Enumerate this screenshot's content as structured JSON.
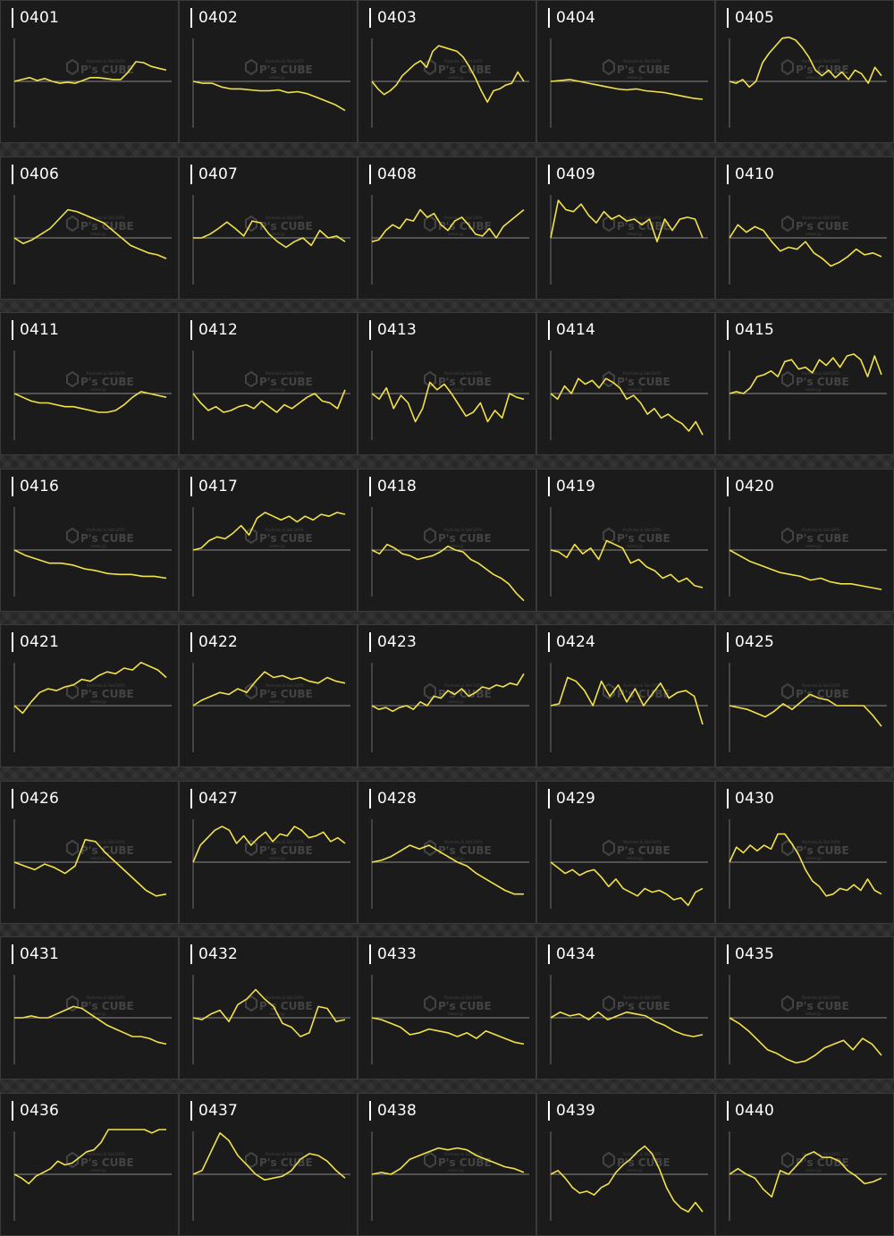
{
  "colors": {
    "line": "#f3e24a",
    "baseline": "#8a8a8a",
    "axis": "#6e6e6e",
    "panel_bg": "#1b1b1b",
    "label": "#ffffff"
  },
  "watermark": {
    "brand": "P's CUBE",
    "top": "Pachinko & Slot DATA",
    "bottom": "sekoai.jp"
  },
  "chart_data": [
    {
      "type": "line",
      "title": "0401",
      "series": [
        {
          "values": [
            0,
            2,
            4,
            1,
            3,
            0,
            -2,
            -1,
            -2,
            1,
            4,
            4,
            3,
            2,
            2,
            10,
            21,
            20,
            16,
            14,
            12
          ]
        }
      ]
    },
    {
      "type": "line",
      "title": "0402",
      "series": [
        {
          "values": [
            0,
            -2,
            -2,
            -6,
            -8,
            -8,
            -9,
            -10,
            -10,
            -9,
            -12,
            -11,
            -13,
            -17,
            -21,
            -25,
            -31
          ]
        }
      ]
    },
    {
      "type": "line",
      "title": "0403",
      "series": [
        {
          "values": [
            0,
            -8,
            -14,
            -10,
            -4,
            6,
            12,
            18,
            22,
            15,
            32,
            38,
            36,
            34,
            32,
            26,
            16,
            4,
            -10,
            -22,
            -10,
            -8,
            -4,
            -2,
            10,
            0
          ]
        }
      ]
    },
    {
      "type": "line",
      "title": "0404",
      "series": [
        {
          "values": [
            0,
            1,
            2,
            0,
            -2,
            -4,
            -6,
            -8,
            -9,
            -8,
            -10,
            -11,
            -12,
            -14,
            -16,
            -18,
            -19
          ]
        }
      ]
    },
    {
      "type": "line",
      "title": "0405",
      "series": [
        {
          "values": [
            0,
            -2,
            2,
            -6,
            0,
            20,
            30,
            38,
            46,
            47,
            44,
            36,
            26,
            12,
            6,
            12,
            4,
            10,
            2,
            12,
            8,
            -2,
            15,
            6
          ]
        }
      ]
    },
    {
      "type": "line",
      "title": "0406",
      "series": [
        {
          "values": [
            0,
            -6,
            -2,
            4,
            10,
            20,
            30,
            28,
            24,
            20,
            16,
            8,
            0,
            -8,
            -12,
            -16,
            -18,
            -22
          ]
        }
      ]
    },
    {
      "type": "line",
      "title": "0407",
      "series": [
        {
          "values": [
            0,
            0,
            4,
            10,
            17,
            10,
            2,
            18,
            16,
            4,
            -4,
            -10,
            -4,
            0,
            -8,
            8,
            0,
            2,
            -4
          ]
        }
      ]
    },
    {
      "type": "line",
      "title": "0408",
      "series": [
        {
          "values": [
            -4,
            -2,
            8,
            14,
            10,
            20,
            18,
            30,
            22,
            26,
            14,
            8,
            18,
            22,
            14,
            4,
            2,
            10,
            0,
            12,
            18,
            24,
            30
          ]
        }
      ]
    },
    {
      "type": "line",
      "title": "0409",
      "series": [
        {
          "values": [
            0,
            40,
            30,
            28,
            36,
            24,
            16,
            28,
            20,
            24,
            18,
            20,
            14,
            20,
            -4,
            20,
            8,
            20,
            22,
            20,
            0
          ]
        }
      ]
    },
    {
      "type": "line",
      "title": "0410",
      "series": [
        {
          "values": [
            0,
            14,
            6,
            12,
            8,
            -4,
            -14,
            -10,
            -12,
            -4,
            -16,
            -22,
            -30,
            -26,
            -20,
            -12,
            -18,
            -16,
            -20
          ]
        }
      ]
    },
    {
      "type": "line",
      "title": "0411",
      "series": [
        {
          "values": [
            0,
            -4,
            -8,
            -10,
            -10,
            -12,
            -14,
            -14,
            -16,
            -18,
            -20,
            -20,
            -18,
            -12,
            -4,
            2,
            0,
            -2,
            -4
          ]
        }
      ]
    },
    {
      "type": "line",
      "title": "0412",
      "series": [
        {
          "values": [
            0,
            -10,
            -18,
            -14,
            -20,
            -18,
            -14,
            -12,
            -16,
            -8,
            -14,
            -20,
            -12,
            -16,
            -10,
            -4,
            0,
            -8,
            -10,
            -16,
            4
          ]
        }
      ]
    },
    {
      "type": "line",
      "title": "0413",
      "series": [
        {
          "values": [
            0,
            -6,
            6,
            -16,
            -2,
            -10,
            -30,
            -16,
            12,
            4,
            10,
            0,
            -12,
            -24,
            -20,
            -10,
            -30,
            -18,
            -26,
            0,
            -4,
            -6
          ]
        }
      ]
    },
    {
      "type": "line",
      "title": "0414",
      "series": [
        {
          "values": [
            0,
            -6,
            8,
            0,
            16,
            10,
            14,
            6,
            16,
            12,
            6,
            -6,
            -2,
            -10,
            -22,
            -16,
            -26,
            -22,
            -28,
            -32,
            -40,
            -30,
            -44
          ]
        }
      ]
    },
    {
      "type": "line",
      "title": "0415",
      "series": [
        {
          "values": [
            0,
            2,
            0,
            6,
            18,
            20,
            24,
            18,
            34,
            36,
            26,
            28,
            22,
            36,
            30,
            38,
            28,
            40,
            42,
            36,
            18,
            40,
            20
          ]
        }
      ]
    },
    {
      "type": "line",
      "title": "0416",
      "series": [
        {
          "values": [
            0,
            -6,
            -10,
            -14,
            -14,
            -16,
            -20,
            -22,
            -25,
            -26,
            -26,
            -28,
            -28,
            -30
          ]
        }
      ]
    },
    {
      "type": "line",
      "title": "0417",
      "series": [
        {
          "values": [
            0,
            2,
            10,
            14,
            12,
            18,
            26,
            16,
            34,
            40,
            36,
            32,
            36,
            30,
            36,
            32,
            38,
            36,
            40,
            38
          ]
        }
      ]
    },
    {
      "type": "line",
      "title": "0418",
      "series": [
        {
          "values": [
            0,
            -4,
            6,
            2,
            -4,
            -6,
            -10,
            -8,
            -6,
            -2,
            4,
            0,
            -2,
            -10,
            -14,
            -20,
            -26,
            -30,
            -36,
            -46,
            -54
          ]
        }
      ]
    },
    {
      "type": "line",
      "title": "0419",
      "series": [
        {
          "values": [
            0,
            -2,
            -8,
            6,
            -4,
            2,
            -10,
            10,
            6,
            2,
            -14,
            -10,
            -18,
            -22,
            -30,
            -26,
            -34,
            -30,
            -38,
            -40
          ]
        }
      ]
    },
    {
      "type": "line",
      "title": "0420",
      "series": [
        {
          "values": [
            0,
            -6,
            -12,
            -16,
            -20,
            -24,
            -26,
            -28,
            -32,
            -30,
            -34,
            -36,
            -36,
            -38,
            -40,
            -42
          ]
        }
      ]
    },
    {
      "type": "line",
      "title": "0421",
      "series": [
        {
          "values": [
            0,
            -8,
            4,
            14,
            18,
            16,
            20,
            22,
            28,
            26,
            32,
            36,
            34,
            40,
            38,
            46,
            42,
            38,
            30
          ]
        }
      ]
    },
    {
      "type": "line",
      "title": "0422",
      "series": [
        {
          "values": [
            0,
            6,
            10,
            14,
            12,
            18,
            14,
            26,
            36,
            30,
            32,
            28,
            30,
            26,
            24,
            30,
            26,
            24
          ]
        }
      ]
    },
    {
      "type": "line",
      "title": "0423",
      "series": [
        {
          "values": [
            0,
            -4,
            -2,
            -6,
            -2,
            0,
            -4,
            4,
            0,
            10,
            8,
            16,
            12,
            18,
            10,
            14,
            20,
            18,
            22,
            20,
            24,
            22,
            34
          ]
        }
      ]
    },
    {
      "type": "line",
      "title": "0424",
      "series": [
        {
          "values": [
            0,
            2,
            30,
            26,
            16,
            0,
            26,
            10,
            22,
            4,
            18,
            0,
            12,
            24,
            8,
            14,
            16,
            10,
            -20
          ]
        }
      ]
    },
    {
      "type": "line",
      "title": "0425",
      "series": [
        {
          "values": [
            0,
            -2,
            -4,
            -8,
            -12,
            -6,
            2,
            -4,
            4,
            12,
            8,
            6,
            0,
            0,
            0,
            0,
            -10,
            -22
          ]
        }
      ]
    },
    {
      "type": "line",
      "title": "0426",
      "series": [
        {
          "values": [
            0,
            -4,
            -8,
            -2,
            -6,
            -12,
            -4,
            24,
            22,
            10,
            0,
            -10,
            -20,
            -30,
            -36,
            -34
          ]
        }
      ]
    },
    {
      "type": "line",
      "title": "0427",
      "series": [
        {
          "values": [
            0,
            18,
            26,
            34,
            38,
            34,
            20,
            28,
            18,
            26,
            32,
            22,
            30,
            28,
            38,
            34,
            26,
            28,
            32,
            22,
            26,
            20
          ]
        }
      ]
    },
    {
      "type": "line",
      "title": "0428",
      "series": [
        {
          "values": [
            0,
            2,
            6,
            12,
            18,
            14,
            18,
            12,
            6,
            0,
            -4,
            -12,
            -18,
            -24,
            -30,
            -34,
            -34
          ]
        }
      ]
    },
    {
      "type": "line",
      "title": "0429",
      "series": [
        {
          "values": [
            0,
            -6,
            -12,
            -8,
            -14,
            -10,
            -8,
            -16,
            -26,
            -18,
            -28,
            -32,
            -36,
            -28,
            -32,
            -30,
            -34,
            -40,
            -38,
            -46,
            -32,
            -28
          ]
        }
      ]
    },
    {
      "type": "line",
      "title": "0430",
      "series": [
        {
          "values": [
            0,
            16,
            10,
            18,
            12,
            18,
            14,
            30,
            30,
            20,
            8,
            -8,
            -20,
            -26,
            -36,
            -34,
            -28,
            -30,
            -24,
            -30,
            -18,
            -30,
            -34
          ]
        }
      ]
    },
    {
      "type": "line",
      "title": "0431",
      "series": [
        {
          "values": [
            0,
            0,
            2,
            0,
            0,
            4,
            8,
            12,
            10,
            4,
            -2,
            -8,
            -12,
            -16,
            -20,
            -20,
            -22,
            -26,
            -28
          ]
        }
      ]
    },
    {
      "type": "line",
      "title": "0432",
      "series": [
        {
          "values": [
            0,
            -2,
            4,
            8,
            -4,
            14,
            20,
            30,
            20,
            12,
            -6,
            -10,
            -20,
            -16,
            12,
            10,
            -4,
            -2
          ]
        }
      ]
    },
    {
      "type": "line",
      "title": "0433",
      "series": [
        {
          "values": [
            0,
            -2,
            -6,
            -10,
            -18,
            -16,
            -12,
            -14,
            -16,
            -20,
            -16,
            -22,
            -14,
            -18,
            -22,
            -26,
            -28
          ]
        }
      ]
    },
    {
      "type": "line",
      "title": "0434",
      "series": [
        {
          "values": [
            0,
            6,
            2,
            4,
            -2,
            6,
            -2,
            2,
            6,
            4,
            2,
            -4,
            -8,
            -14,
            -18,
            -20,
            -18
          ]
        }
      ]
    },
    {
      "type": "line",
      "title": "0435",
      "series": [
        {
          "values": [
            0,
            -6,
            -14,
            -24,
            -34,
            -38,
            -44,
            -48,
            -46,
            -40,
            -32,
            -28,
            -24,
            -34,
            -22,
            -28,
            -40
          ]
        }
      ]
    },
    {
      "type": "line",
      "title": "0436",
      "series": [
        {
          "values": [
            0,
            -4,
            -10,
            -2,
            2,
            6,
            14,
            10,
            12,
            18,
            24,
            26,
            34,
            52,
            50,
            48,
            52,
            48,
            50,
            44,
            48,
            50
          ]
        }
      ]
    },
    {
      "type": "line",
      "title": "0437",
      "series": [
        {
          "values": [
            0,
            4,
            24,
            44,
            36,
            20,
            10,
            0,
            -6,
            -4,
            -2,
            4,
            16,
            22,
            20,
            14,
            4,
            -4
          ]
        }
      ]
    },
    {
      "type": "line",
      "title": "0438",
      "series": [
        {
          "values": [
            0,
            2,
            0,
            6,
            16,
            20,
            24,
            28,
            26,
            28,
            26,
            20,
            16,
            12,
            8,
            6,
            2
          ]
        }
      ]
    },
    {
      "type": "line",
      "title": "0439",
      "series": [
        {
          "values": [
            0,
            4,
            -4,
            -14,
            -20,
            -18,
            -22,
            -14,
            -10,
            2,
            10,
            16,
            24,
            30,
            22,
            6,
            -14,
            -28,
            -36,
            -40,
            -30,
            -40
          ]
        }
      ]
    },
    {
      "type": "line",
      "title": "0440",
      "series": [
        {
          "values": [
            0,
            6,
            0,
            -4,
            -16,
            -24,
            4,
            0,
            10,
            20,
            24,
            18,
            18,
            14,
            4,
            -2,
            -10,
            -8,
            -4
          ]
        }
      ]
    }
  ]
}
